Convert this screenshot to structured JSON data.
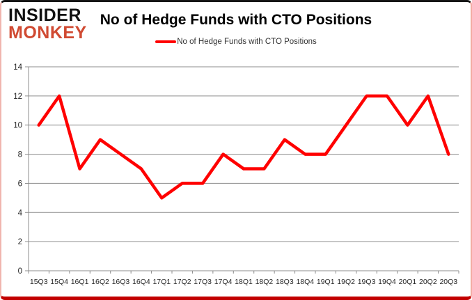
{
  "logo": {
    "line1": "INSIDER",
    "line2": "MONKEY"
  },
  "header": {
    "title": "No of Hedge Funds with CTO Positions"
  },
  "legend": {
    "label": "No of Hedge Funds with CTO Positions"
  },
  "chart_data": {
    "type": "line",
    "title": "No of Hedge Funds with CTO Positions",
    "categories": [
      "15Q3",
      "15Q4",
      "16Q1",
      "16Q2",
      "16Q3",
      "16Q4",
      "17Q1",
      "17Q2",
      "17Q3",
      "17Q4",
      "18Q1",
      "18Q2",
      "18Q3",
      "18Q4",
      "19Q1",
      "19Q2",
      "19Q3",
      "19Q4",
      "20Q1",
      "20Q2",
      "20Q3"
    ],
    "series": [
      {
        "name": "No of Hedge Funds with CTO Positions",
        "values": [
          10,
          12,
          7,
          9,
          8,
          7,
          5,
          6,
          6,
          8,
          7,
          7,
          9,
          8,
          8,
          10,
          12,
          12,
          10,
          12,
          8
        ],
        "color": "#ff0000"
      }
    ],
    "xlabel": "",
    "ylabel": "",
    "ylim": [
      0,
      14
    ],
    "y_ticks": [
      0,
      2,
      4,
      6,
      8,
      10,
      12,
      14
    ],
    "grid": true,
    "legend_position": "top-center",
    "colors": {
      "line": "#ff0000",
      "grid": "#8c8c8c",
      "axis": "#8c8c8c",
      "tick_label": "#262626"
    }
  }
}
